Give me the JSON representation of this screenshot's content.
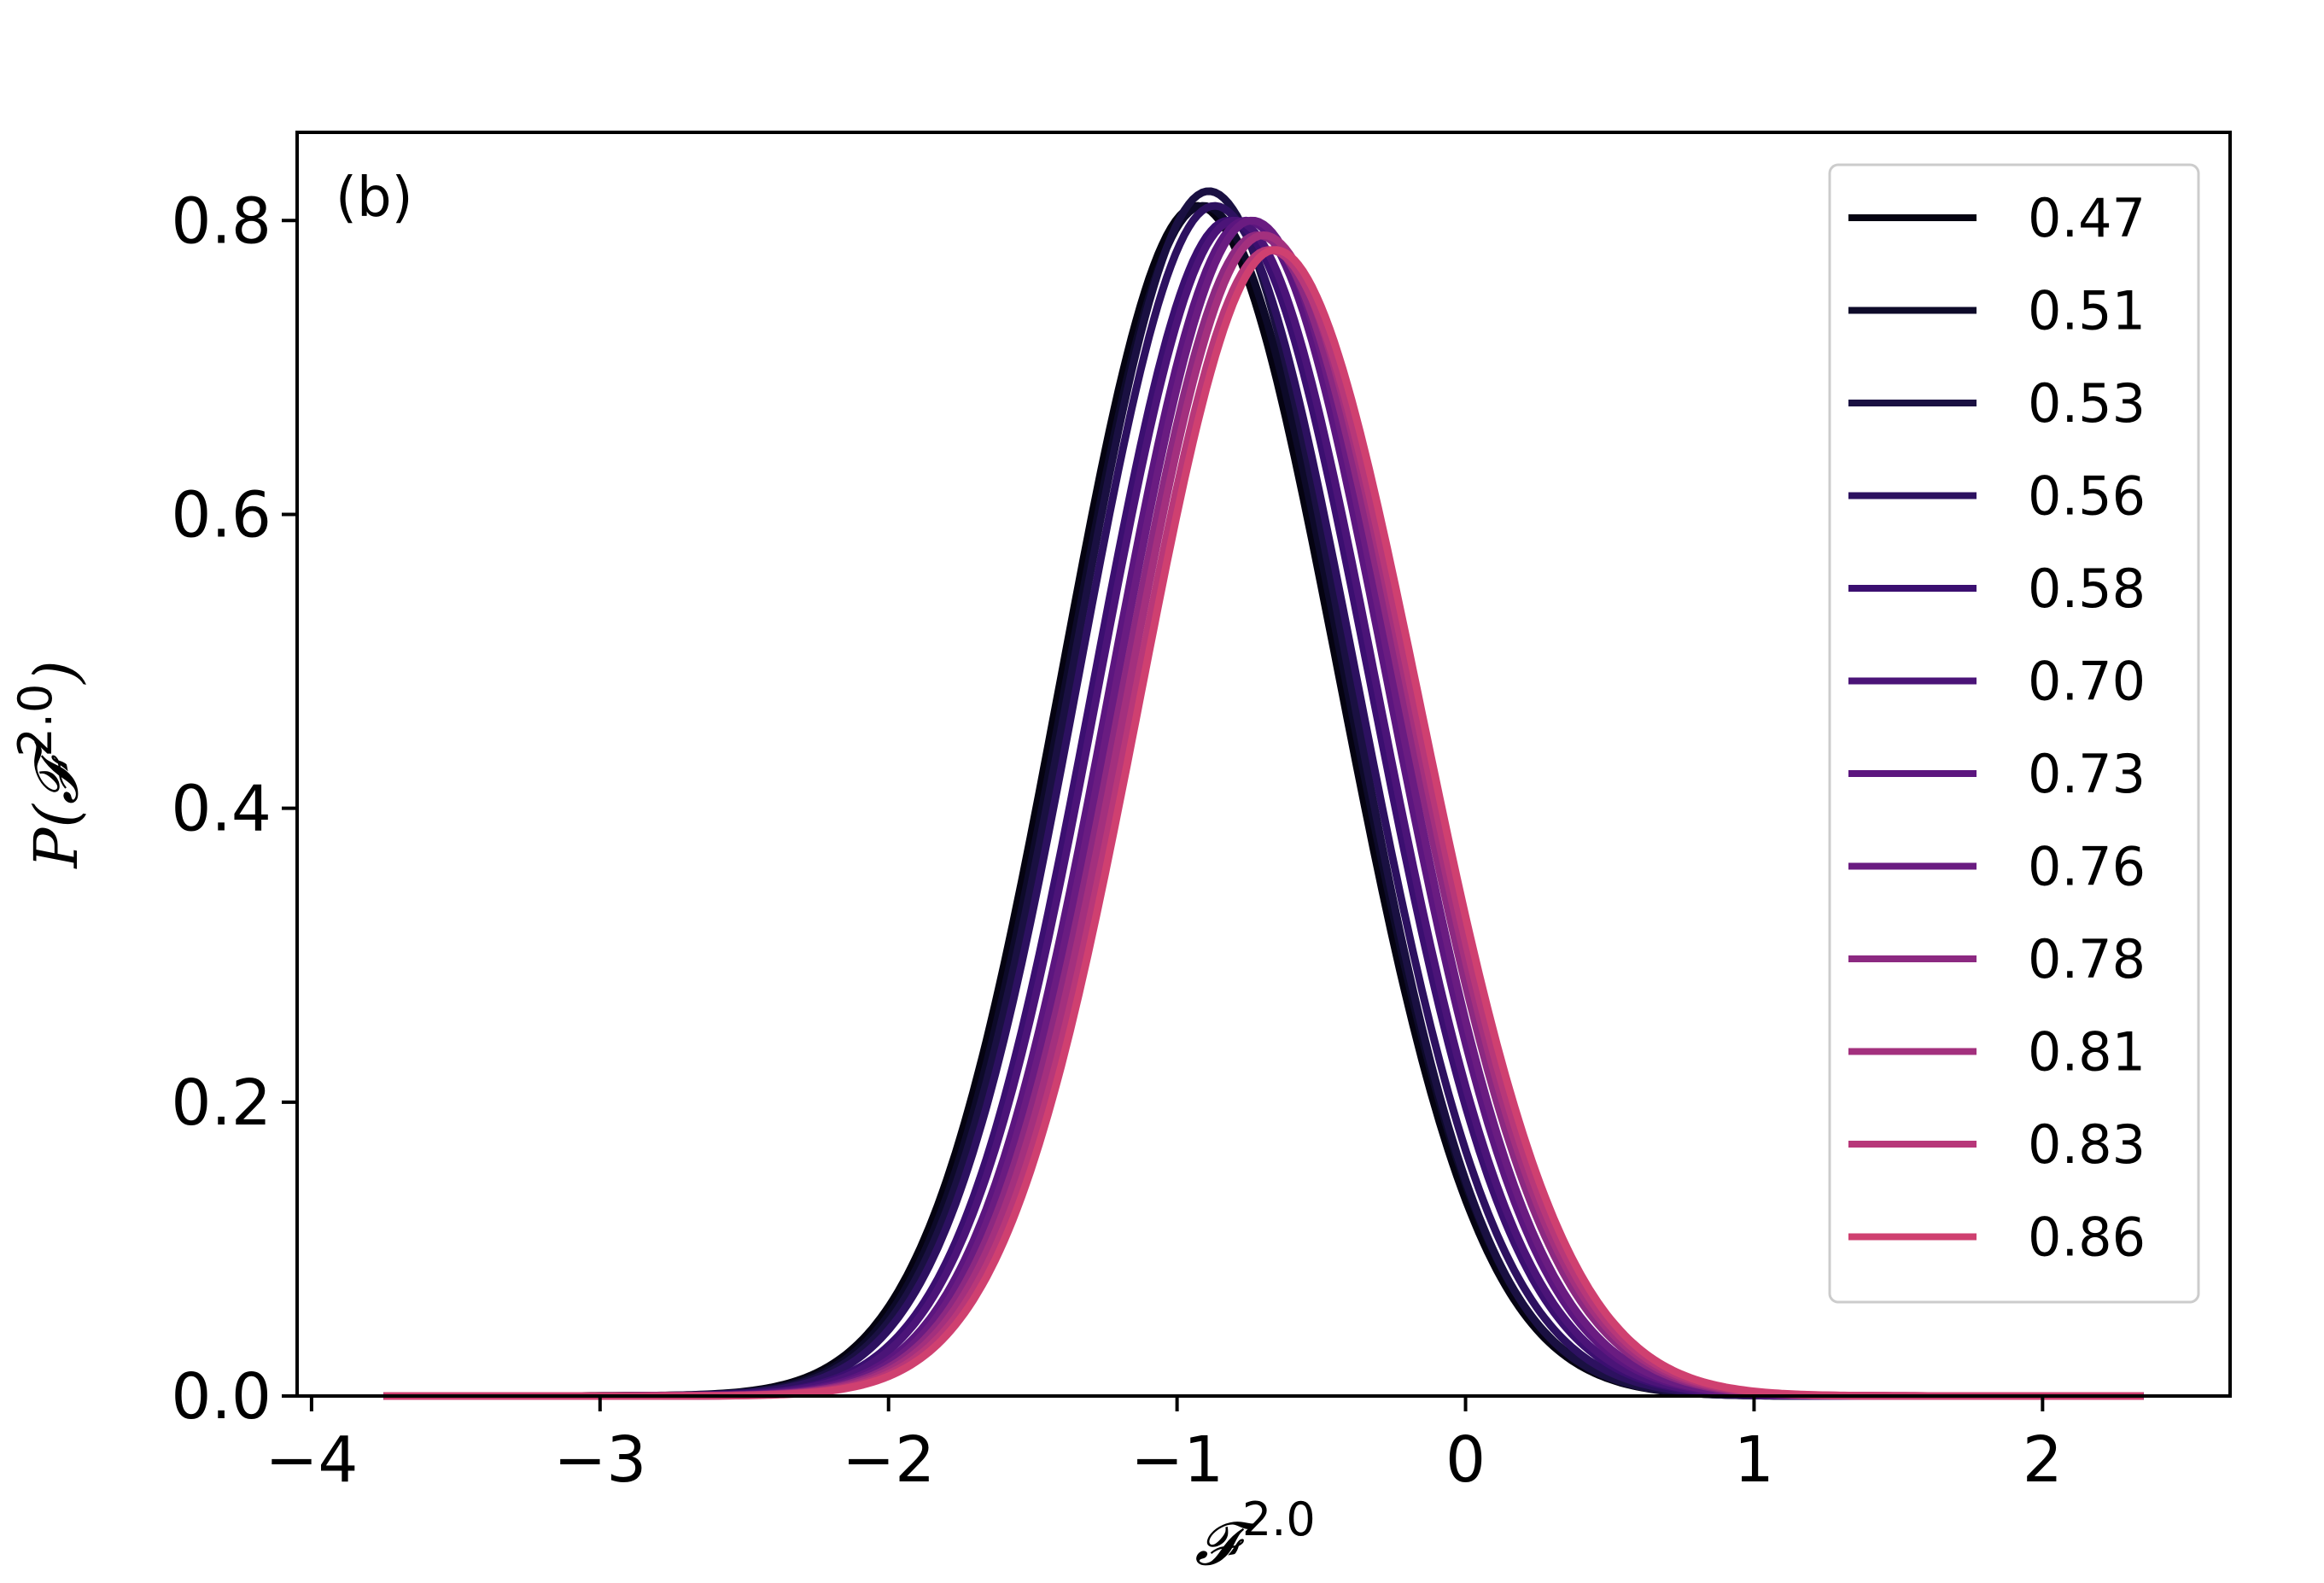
{
  "panel_label": "(b)",
  "chart_data": {
    "type": "line",
    "title": "",
    "xlabel": {
      "main": "𝓕",
      "sup": "2.0"
    },
    "ylabel": {
      "pre": "P(",
      "main": "𝓕",
      "sup": "2.0",
      "post": ")"
    },
    "xlim": [
      -4.05,
      2.65
    ],
    "ylim": [
      0,
      0.86
    ],
    "x_ticks": [
      -4,
      -3,
      -2,
      -1,
      0,
      1,
      2
    ],
    "x_tick_labels": [
      "−4",
      "−3",
      "−2",
      "−1",
      "0",
      "1",
      "2"
    ],
    "y_ticks": [
      0.0,
      0.2,
      0.4,
      0.6,
      0.8
    ],
    "y_tick_labels": [
      "0.0",
      "0.2",
      "0.4",
      "0.6",
      "0.8"
    ],
    "grid": false,
    "legend_position": "top-right",
    "x_range_plotted": [
      -3.75,
      2.35
    ],
    "series": [
      {
        "name": "0.47",
        "color": "#050311",
        "peak_x": -0.93,
        "peak_y": 0.81,
        "sigma_left": 0.47,
        "sigma_right": 0.49
      },
      {
        "name": "0.51",
        "color": "#0d0a29",
        "peak_x": -0.91,
        "peak_y": 0.81,
        "sigma_left": 0.47,
        "sigma_right": 0.49
      },
      {
        "name": "0.53",
        "color": "#1a1042",
        "peak_x": -0.89,
        "peak_y": 0.82,
        "sigma_left": 0.47,
        "sigma_right": 0.48
      },
      {
        "name": "0.56",
        "color": "#2d1160",
        "peak_x": -0.87,
        "peak_y": 0.81,
        "sigma_left": 0.47,
        "sigma_right": 0.49
      },
      {
        "name": "0.58",
        "color": "#3b0f70",
        "peak_x": -0.82,
        "peak_y": 0.8,
        "sigma_left": 0.47,
        "sigma_right": 0.49
      },
      {
        "name": "0.70",
        "color": "#4b1478",
        "peak_x": -0.8,
        "peak_y": 0.8,
        "sigma_left": 0.47,
        "sigma_right": 0.49
      },
      {
        "name": "0.73",
        "color": "#5c167f",
        "peak_x": -0.76,
        "peak_y": 0.8,
        "sigma_left": 0.47,
        "sigma_right": 0.49
      },
      {
        "name": "0.76",
        "color": "#6a1c81",
        "peak_x": -0.74,
        "peak_y": 0.8,
        "sigma_left": 0.47,
        "sigma_right": 0.49
      },
      {
        "name": "0.78",
        "color": "#8c2981",
        "peak_x": -0.72,
        "peak_y": 0.79,
        "sigma_left": 0.47,
        "sigma_right": 0.5
      },
      {
        "name": "0.81",
        "color": "#a3307e",
        "peak_x": -0.7,
        "peak_y": 0.79,
        "sigma_left": 0.47,
        "sigma_right": 0.5
      },
      {
        "name": "0.83",
        "color": "#b73779",
        "peak_x": -0.68,
        "peak_y": 0.78,
        "sigma_left": 0.47,
        "sigma_right": 0.5
      },
      {
        "name": "0.86",
        "color": "#cf4070",
        "peak_x": -0.66,
        "peak_y": 0.78,
        "sigma_left": 0.47,
        "sigma_right": 0.5
      }
    ]
  }
}
